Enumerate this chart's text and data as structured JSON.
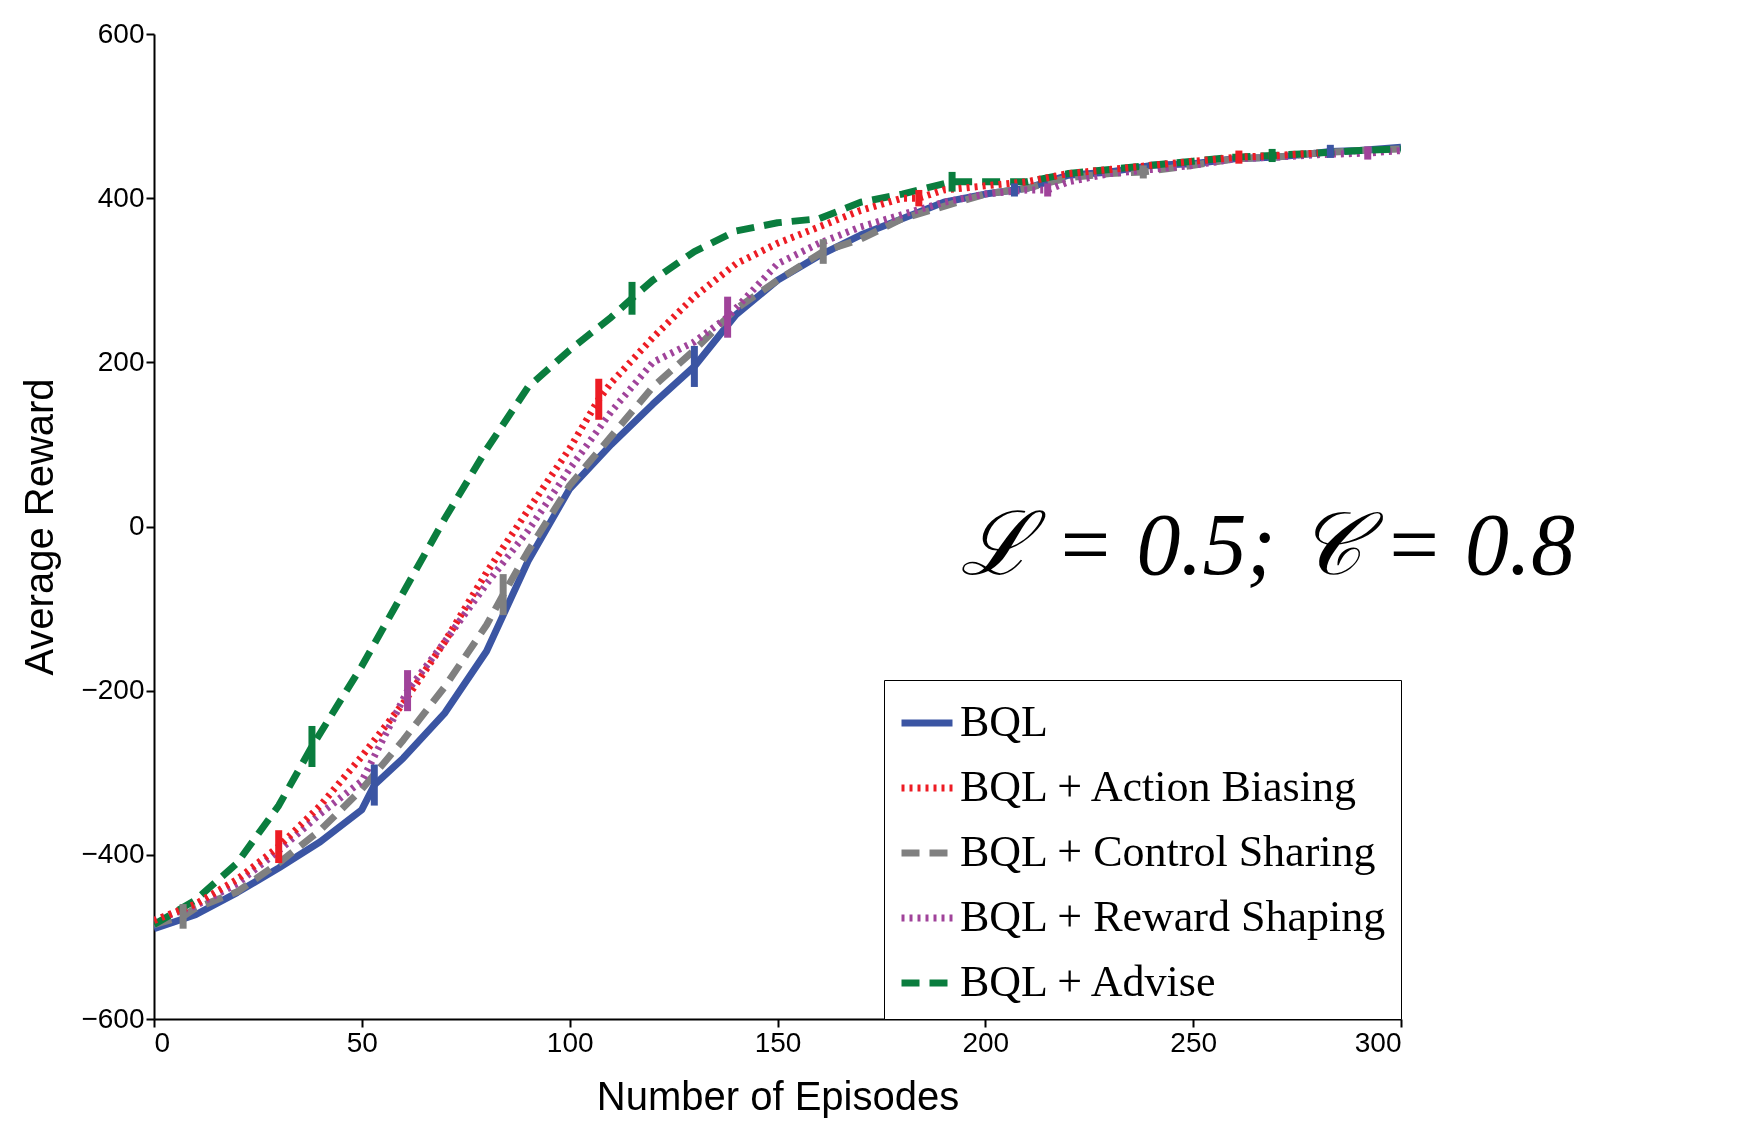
{
  "chart_data": {
    "type": "line",
    "xlabel": "Number of Episodes",
    "ylabel": "Average Reward",
    "xlim": [
      0,
      300
    ],
    "xticks": [
      0,
      50,
      100,
      150,
      200,
      250,
      300
    ],
    "ylim": [
      -600,
      600
    ],
    "yticks": [
      {
        "value": -600,
        "label": "−600"
      },
      {
        "value": -400,
        "label": "−400"
      },
      {
        "value": -200,
        "label": "−200"
      },
      0,
      200,
      400,
      600
    ],
    "grid": false,
    "legend": "bottom right",
    "annotations": [
      "ℒ = 0.5; 𝒞 = 0.8"
    ],
    "series": [
      {
        "name": "BQL",
        "color": "#3b55a3",
        "line_style": "solid",
        "x": [
          0,
          10,
          20,
          30,
          40,
          50,
          53,
          60,
          70,
          80,
          90,
          100,
          110,
          120,
          130,
          140,
          150,
          160,
          170,
          180,
          190,
          200,
          207,
          210,
          220,
          230,
          240,
          250,
          260,
          270,
          280,
          283,
          290,
          300
        ],
        "values": [
          -490,
          -473,
          -446,
          -416,
          -384,
          -345,
          -315,
          -282,
          -227,
          -152,
          -42,
          46,
          100,
          149,
          195,
          258,
          300,
          330,
          355,
          375,
          395,
          405,
          410,
          412,
          428,
          432,
          440,
          442,
          448,
          450,
          455,
          457,
          458,
          462
        ],
        "errors": [
          null,
          null,
          null,
          null,
          null,
          null,
          25,
          null,
          null,
          null,
          null,
          null,
          null,
          null,
          25,
          null,
          null,
          null,
          null,
          null,
          null,
          null,
          8,
          null,
          null,
          null,
          null,
          null,
          null,
          null,
          null,
          8,
          null,
          null
        ]
      },
      {
        "name": "BQL + Action Biasing",
        "color": "#ed1c24",
        "line_style": "dotted",
        "x": [
          0,
          10,
          20,
          30,
          40,
          50,
          60,
          70,
          80,
          90,
          100,
          107,
          110,
          120,
          130,
          140,
          150,
          160,
          170,
          180,
          184,
          190,
          200,
          210,
          220,
          230,
          240,
          250,
          261,
          270,
          280
        ],
        "values": [
          -480,
          -460,
          -430,
          -390,
          -340,
          -280,
          -215,
          -140,
          -56,
          20,
          95,
          155,
          175,
          230,
          280,
          320,
          345,
          365,
          385,
          400,
          400,
          410,
          415,
          420,
          430,
          435,
          440,
          445,
          450,
          452,
          455
        ],
        "errors": [
          null,
          null,
          null,
          20,
          null,
          null,
          null,
          null,
          null,
          null,
          null,
          25,
          null,
          null,
          null,
          null,
          null,
          null,
          null,
          null,
          10,
          null,
          null,
          null,
          null,
          null,
          null,
          null,
          8,
          null,
          null
        ]
      },
      {
        "name": "BQL + Control Sharing",
        "color": "#808080",
        "line_style": "dashed",
        "x": [
          0,
          7,
          10,
          20,
          30,
          40,
          50,
          60,
          70,
          80,
          84,
          90,
          100,
          110,
          120,
          130,
          140,
          150,
          161,
          170,
          180,
          190,
          200,
          210,
          220,
          230,
          238,
          250,
          260,
          270,
          280,
          290,
          300
        ],
        "values": [
          -485,
          -475,
          -465,
          -445,
          -410,
          -370,
          -320,
          -260,
          -195,
          -120,
          -83,
          -30,
          50,
          110,
          170,
          215,
          265,
          300,
          335,
          350,
          375,
          390,
          405,
          412,
          425,
          430,
          432,
          440,
          448,
          450,
          455,
          458,
          460
        ],
        "errors": [
          null,
          15,
          null,
          null,
          null,
          null,
          null,
          null,
          null,
          null,
          25,
          null,
          null,
          null,
          null,
          null,
          null,
          null,
          15,
          null,
          null,
          null,
          null,
          null,
          null,
          null,
          8,
          null,
          null,
          null,
          null,
          null,
          null
        ]
      },
      {
        "name": "BQL + Reward Shaping",
        "color": "#a0439a",
        "line_style": "dotted",
        "x": [
          0,
          10,
          20,
          30,
          40,
          50,
          61,
          70,
          80,
          90,
          100,
          110,
          120,
          130,
          138,
          150,
          160,
          170,
          180,
          190,
          200,
          210,
          215,
          220,
          230,
          240,
          250,
          260,
          270,
          280,
          292,
          300
        ],
        "values": [
          -480,
          -462,
          -435,
          -395,
          -350,
          -310,
          -200,
          -140,
          -70,
          -5,
          70,
          140,
          200,
          225,
          255,
          320,
          345,
          365,
          380,
          395,
          405,
          410,
          410,
          420,
          430,
          435,
          440,
          448,
          450,
          453,
          455,
          458
        ],
        "errors": [
          null,
          null,
          null,
          null,
          null,
          null,
          25,
          null,
          null,
          null,
          null,
          null,
          null,
          null,
          25,
          null,
          null,
          null,
          null,
          null,
          null,
          null,
          8,
          null,
          null,
          null,
          null,
          null,
          null,
          null,
          8,
          null
        ]
      },
      {
        "name": "BQL + Advise",
        "color": "#0a7d3e",
        "line_style": "dashed",
        "x": [
          0,
          10,
          20,
          30,
          38,
          50,
          60,
          70,
          80,
          90,
          100,
          110,
          115,
          120,
          130,
          140,
          150,
          160,
          170,
          180,
          192,
          200,
          210,
          220,
          230,
          240,
          250,
          260,
          269,
          280,
          290,
          300
        ],
        "values": [
          -485,
          -455,
          -410,
          -340,
          -268,
          -170,
          -80,
          10,
          94,
          170,
          215,
          255,
          278,
          300,
          335,
          360,
          370,
          375,
          395,
          405,
          420,
          420,
          420,
          430,
          435,
          440,
          445,
          450,
          452,
          455,
          458,
          460
        ],
        "errors": [
          null,
          null,
          null,
          null,
          25,
          null,
          null,
          null,
          null,
          null,
          null,
          null,
          20,
          null,
          null,
          null,
          null,
          null,
          null,
          null,
          12,
          null,
          null,
          null,
          null,
          null,
          null,
          null,
          8,
          null,
          null,
          null
        ]
      }
    ]
  }
}
